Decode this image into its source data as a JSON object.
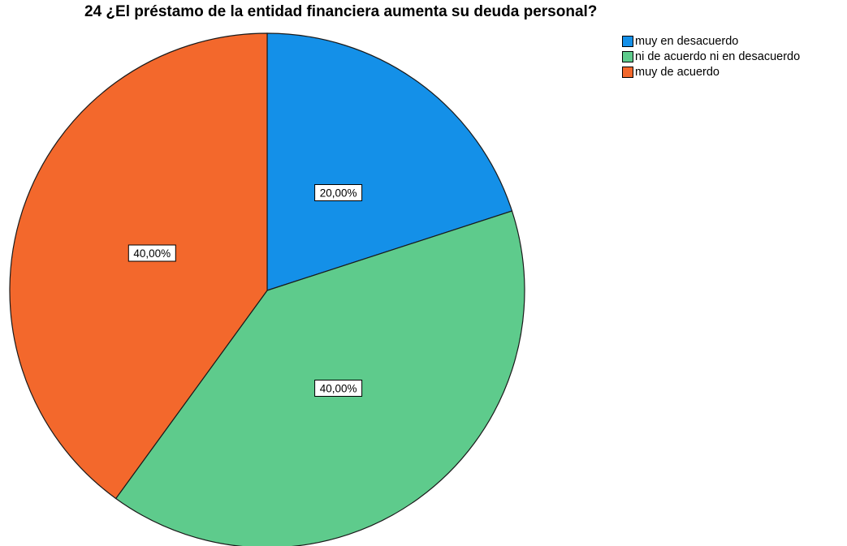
{
  "chart_data": {
    "type": "pie",
    "title": "24 ¿El préstamo de la entidad financiera aumenta su deuda personal?",
    "slices": [
      {
        "label": "muy en desacuerdo",
        "value": 20.0,
        "display": "20,00%",
        "color": "#1490e8"
      },
      {
        "label": "ni de acuerdo ni en desacuerdo",
        "value": 40.0,
        "display": "40,00%",
        "color": "#5ecb8c"
      },
      {
        "label": "muy de acuerdo",
        "value": 40.0,
        "display": "40,00%",
        "color": "#f3682c"
      }
    ],
    "legend_position": "top-right"
  }
}
